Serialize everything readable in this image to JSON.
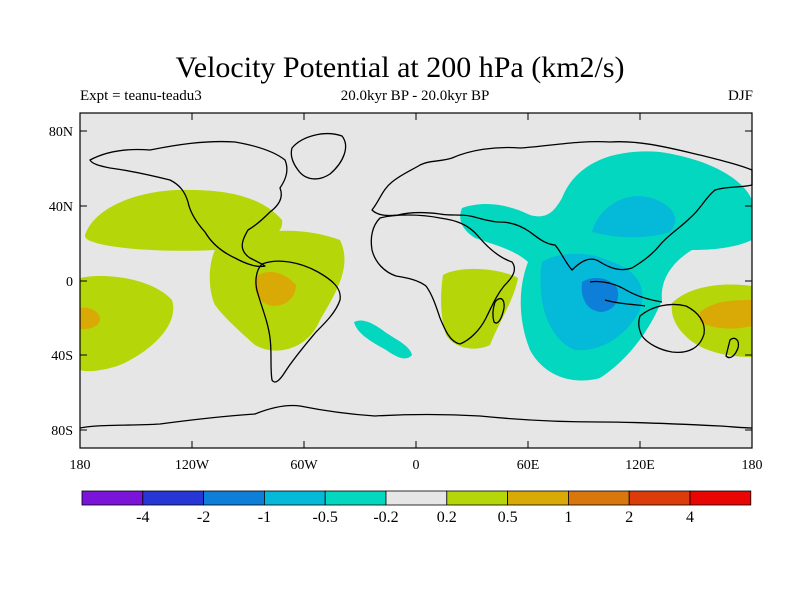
{
  "title": "Velocity Potential at 200 hPa (km2/s)",
  "subtitle": "20.0kyr BP - 20.0kyr BP",
  "expt_label": "Expt = teanu-teadu3",
  "season": "DJF",
  "lat_ticks": [
    "80N",
    "40N",
    "0",
    "40S",
    "80S"
  ],
  "lon_ticks": [
    "180",
    "120W",
    "60W",
    "0",
    "60E",
    "120E",
    "180"
  ],
  "colorbar": {
    "labels": [
      "-4",
      "-2",
      "-1",
      "-0.5",
      "-0.2",
      "0.2",
      "0.5",
      "1",
      "2",
      "4"
    ],
    "colors": [
      "#7b14d9",
      "#2637d6",
      "#0e7fd8",
      "#05b9d9",
      "#04d7bf",
      "#e6e6e6",
      "#b5d70a",
      "#d9aa05",
      "#d9770c",
      "#dc3b0a",
      "#ea0505"
    ]
  },
  "colors": {
    "ocean": "#e6e6e6",
    "coast": "#000000"
  }
}
